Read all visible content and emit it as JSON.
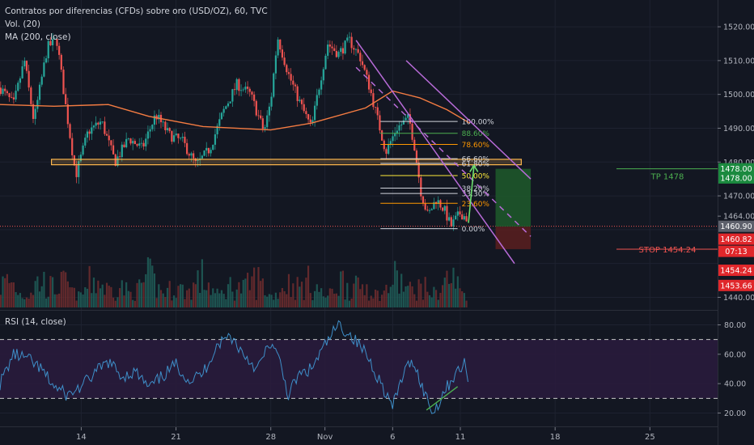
{
  "header": {
    "title": "Contratos por diferencias (CFDs) sobre oro (USD/OZ), 60, TVC",
    "volume_label": "Vol. (20)",
    "ma_label": "MA (200, close)"
  },
  "rsi_label": "RSI (14, close)",
  "colors": {
    "background": "#131722",
    "candle_up": "#26a69a",
    "candle_down": "#ef5350",
    "ma": "#f57c42",
    "channel": "#b86bd8",
    "support_zone": "#ffb74d",
    "rsi_band": "#2a1b3d",
    "rsi_line": "#3e8fc9",
    "target_zone": "#1e5b2a",
    "stop_zone": "#5b1e1e"
  },
  "chart_data": [
    {
      "type": "candlestick",
      "title": "Contratos por diferencias (CFDs) sobre oro (USD/OZ), 60, TVC",
      "x_tick_labels": [
        "14",
        "21",
        "28",
        "Nov",
        "6",
        "11",
        "18",
        "25"
      ],
      "x_tick_days": [
        14,
        21,
        28,
        32,
        37,
        42,
        49,
        56
      ],
      "x_range_days": [
        8,
        61
      ],
      "y_range": [
        1437,
        1526
      ],
      "y_tick_labels": [
        "1520.00",
        "1510.00",
        "1500.00",
        "1490.00",
        "1480.00",
        "1470.00",
        "1464.00",
        "1440.00"
      ],
      "price_path": [
        [
          8,
          1502
        ],
        [
          9,
          1497
        ],
        [
          9.8,
          1510
        ],
        [
          10.5,
          1492
        ],
        [
          11.5,
          1514
        ],
        [
          12.2,
          1516
        ],
        [
          12.8,
          1498
        ],
        [
          13.6,
          1476
        ],
        [
          14.5,
          1489
        ],
        [
          15.5,
          1492
        ],
        [
          16.5,
          1480
        ],
        [
          17.5,
          1487
        ],
        [
          18.5,
          1484
        ],
        [
          19.5,
          1494
        ],
        [
          20.5,
          1488
        ],
        [
          21.5,
          1486
        ],
        [
          22.5,
          1479
        ],
        [
          23.5,
          1484
        ],
        [
          24.5,
          1495
        ],
        [
          25.5,
          1503
        ],
        [
          26.5,
          1500
        ],
        [
          27.5,
          1489
        ],
        [
          28,
          1498
        ],
        [
          28.5,
          1517
        ],
        [
          29.3,
          1506
        ],
        [
          30.2,
          1497
        ],
        [
          31,
          1490
        ],
        [
          31.5,
          1501
        ],
        [
          32.2,
          1515
        ],
        [
          33,
          1512
        ],
        [
          33.8,
          1516
        ],
        [
          34.6,
          1511
        ],
        [
          35.3,
          1502
        ],
        [
          35.8,
          1494
        ],
        [
          36.5,
          1483
        ],
        [
          37.3,
          1490
        ],
        [
          38.2,
          1493
        ],
        [
          38.6,
          1485
        ],
        [
          39.1,
          1471
        ],
        [
          39.6,
          1464
        ],
        [
          40.2,
          1469
        ],
        [
          40.8,
          1466
        ],
        [
          41.3,
          1461
        ],
        [
          42,
          1465
        ],
        [
          42.6,
          1463
        ]
      ],
      "moving_average": {
        "name": "MA (200, close)",
        "points": [
          [
            8,
            1497
          ],
          [
            12,
            1496.5
          ],
          [
            16,
            1497
          ],
          [
            19,
            1493.5
          ],
          [
            23,
            1490.5
          ],
          [
            28,
            1489.5
          ],
          [
            31,
            1491.5
          ],
          [
            35,
            1496
          ],
          [
            37,
            1501
          ],
          [
            39,
            1499
          ],
          [
            41,
            1495.5
          ],
          [
            42.7,
            1491.5
          ]
        ]
      },
      "price_markers": [
        {
          "label": "1478.00",
          "price": 1478.0,
          "kind": "target"
        },
        {
          "label": "1478.00",
          "price": 1475.3,
          "kind": "target"
        },
        {
          "label": "1460.90",
          "price": 1461.0,
          "kind": "current"
        },
        {
          "label": "1460.82",
          "price": 1457.2,
          "kind": "stop"
        },
        {
          "label": "07:13",
          "price": 1453.6,
          "kind": "timer"
        },
        {
          "label": "1454.24",
          "price": 1448.0,
          "kind": "stop"
        },
        {
          "label": "1453.66",
          "price": 1443.5,
          "kind": "stop"
        }
      ],
      "fibonacci_levels": [
        {
          "label": "100.00%",
          "price": 1492.0,
          "color": "#d1d4dc"
        },
        {
          "label": "88.60%",
          "price": 1488.5,
          "color": "#4caf50"
        },
        {
          "label": "78.60%",
          "price": 1485.2,
          "color": "#ff9800"
        },
        {
          "label": "66.60%",
          "price": 1481.0,
          "color": "#d1d4dc"
        },
        {
          "label": "61.80%",
          "price": 1479.6,
          "color": "#d1d4dc"
        },
        {
          "label": "50.00%",
          "price": 1476.0,
          "color": "#ffeb3b"
        },
        {
          "label": "38.20%",
          "price": 1472.3,
          "color": "#d1d4dc"
        },
        {
          "label": "33.30%",
          "price": 1470.7,
          "color": "#d1d4dc"
        },
        {
          "label": "23.60%",
          "price": 1467.8,
          "color": "#ff9800"
        },
        {
          "label": "0.00%",
          "price": 1460.3,
          "color": "#d1d4dc"
        }
      ],
      "support_zone": {
        "price_low": 1479.2,
        "price_high": 1480.8,
        "x_start": 11.8,
        "x_end": 46.5
      },
      "trade_setup": {
        "target_label": "TP 1478",
        "stop_label": "STOP 1454.24",
        "target_price": 1478.0,
        "entry_price": 1460.9,
        "stop_price": 1454.24,
        "x_start": 44.6,
        "x_end": 47.2
      },
      "channel_lines": [
        {
          "style": "solid",
          "from": [
            34.3,
            1516
          ],
          "to": [
            46.0,
            1450
          ]
        },
        {
          "style": "solid",
          "from": [
            38.0,
            1510
          ],
          "to": [
            47.2,
            1475
          ]
        },
        {
          "style": "dashed",
          "from": [
            34.3,
            1508
          ],
          "to": [
            47.2,
            1458
          ]
        }
      ],
      "projection_arrow": {
        "from": [
          42.6,
          1462
        ],
        "to": [
          43.0,
          1479
        ]
      },
      "current_price_line": 1461.0
    },
    {
      "type": "bar",
      "name": "Vol. (20)",
      "note": "volume histogram under price panel, bars colored by candle direction"
    },
    {
      "type": "line",
      "title": "RSI (14, close)",
      "y_range": [
        12,
        88
      ],
      "y_tick_labels": [
        "80.00",
        "60.00",
        "40.00",
        "20.00"
      ],
      "y_tick_values": [
        80,
        60,
        40,
        20
      ],
      "overbought": 70,
      "oversold": 30,
      "points": [
        [
          8,
          40
        ],
        [
          9,
          60
        ],
        [
          10,
          57
        ],
        [
          11,
          50
        ],
        [
          12,
          38
        ],
        [
          13,
          32
        ],
        [
          14,
          38
        ],
        [
          15,
          47
        ],
        [
          16,
          55
        ],
        [
          17,
          45
        ],
        [
          18,
          48
        ],
        [
          19,
          37
        ],
        [
          20,
          45
        ],
        [
          21,
          53
        ],
        [
          22,
          42
        ],
        [
          23,
          47
        ],
        [
          24,
          66
        ],
        [
          25,
          73
        ],
        [
          26,
          60
        ],
        [
          27,
          50
        ],
        [
          28,
          68
        ],
        [
          28.7,
          54
        ],
        [
          29.3,
          32
        ],
        [
          30,
          45
        ],
        [
          31,
          50
        ],
        [
          32,
          66
        ],
        [
          33,
          80
        ],
        [
          34,
          72
        ],
        [
          35,
          61
        ],
        [
          36,
          43
        ],
        [
          37,
          24
        ],
        [
          37.8,
          47
        ],
        [
          38.5,
          56
        ],
        [
          39.3,
          35
        ],
        [
          40,
          20
        ],
        [
          40.7,
          33
        ],
        [
          41.5,
          45
        ],
        [
          42.3,
          53
        ],
        [
          42.7,
          42
        ]
      ],
      "divergence_line": {
        "from": [
          39.5,
          22
        ],
        "to": [
          41.8,
          38
        ]
      }
    }
  ]
}
